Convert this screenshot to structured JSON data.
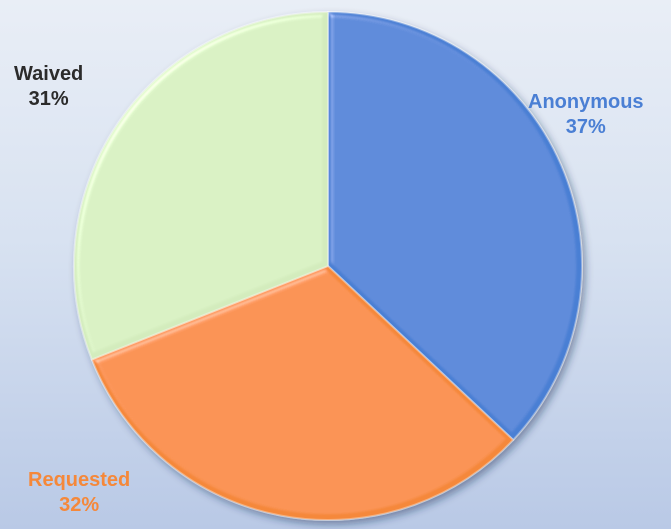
{
  "chart_data": {
    "type": "pie",
    "title": "",
    "start_angle_deg": 0,
    "direction": "clockwise",
    "slices": [
      {
        "label": "Anonymous",
        "percent_label": "37%",
        "value": 37,
        "color": "#4a7fd4",
        "label_color": "#4a7fd4"
      },
      {
        "label": "Requested",
        "percent_label": "32%",
        "value": 32,
        "color": "#f5883a",
        "label_color": "#f5883a"
      },
      {
        "label": "Waived",
        "percent_label": "31%",
        "value": 31,
        "color": "#d3ecbd",
        "label_color": "#2b2b2b"
      }
    ],
    "legend": "none",
    "data_labels": "outside"
  }
}
